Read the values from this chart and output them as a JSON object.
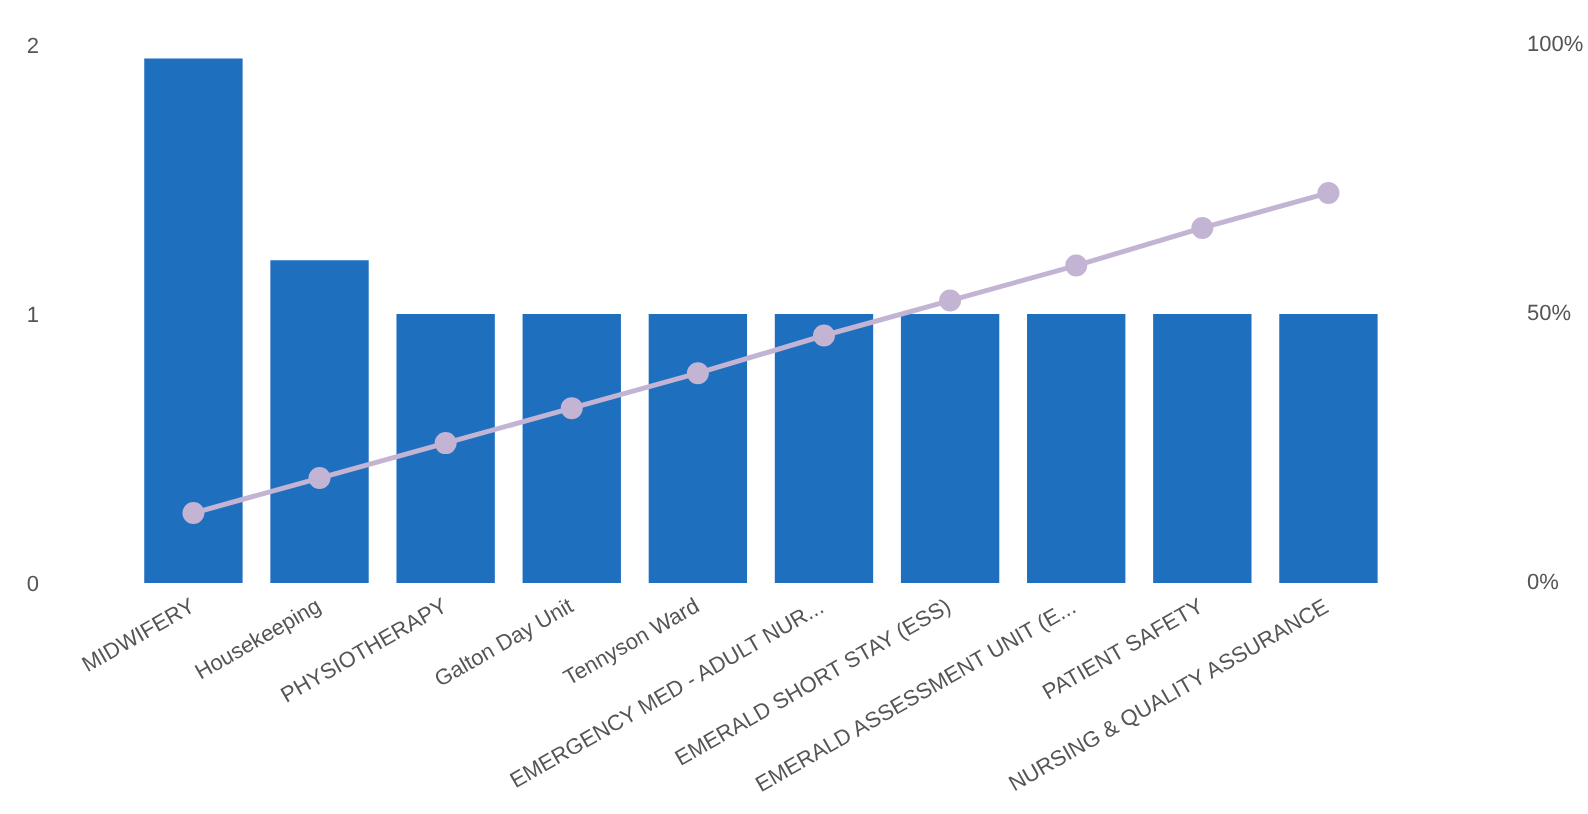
{
  "chart_data": {
    "type": "bar",
    "categories": [
      "MIDWIFERY",
      "Housekeeping",
      "PHYSIOTHERAPY",
      "Galton Day Unit",
      "Tennyson Ward",
      "EMERGENCY MED - ADULT NUR...",
      "EMERALD SHORT STAY (ESS)",
      "EMERALD ASSESSMENT UNIT (E...",
      "PATIENT SAFETY",
      "NURSING & QUALITY ASSURANCE"
    ],
    "series": [
      {
        "color": "#1f6fbf",
        "values": [
          1.95,
          1.2,
          1,
          1,
          1,
          1,
          1,
          1,
          1,
          1
        ]
      },
      {
        "type": "line",
        "axis": "y2",
        "color": "#c4b4d4",
        "marker": "circle",
        "values": [
          13,
          19.5,
          26,
          32.5,
          39,
          46,
          52.5,
          59,
          66,
          72.5
        ]
      }
    ],
    "ylim": [
      0,
      2
    ],
    "yticks": [
      0,
      1,
      2
    ],
    "y2lim": [
      0,
      100
    ],
    "y2ticks": [
      {
        "value": 0,
        "label": "0%"
      },
      {
        "value": 50,
        "label": "50%"
      },
      {
        "value": 100,
        "label": "100%"
      }
    ],
    "grid": false
  }
}
